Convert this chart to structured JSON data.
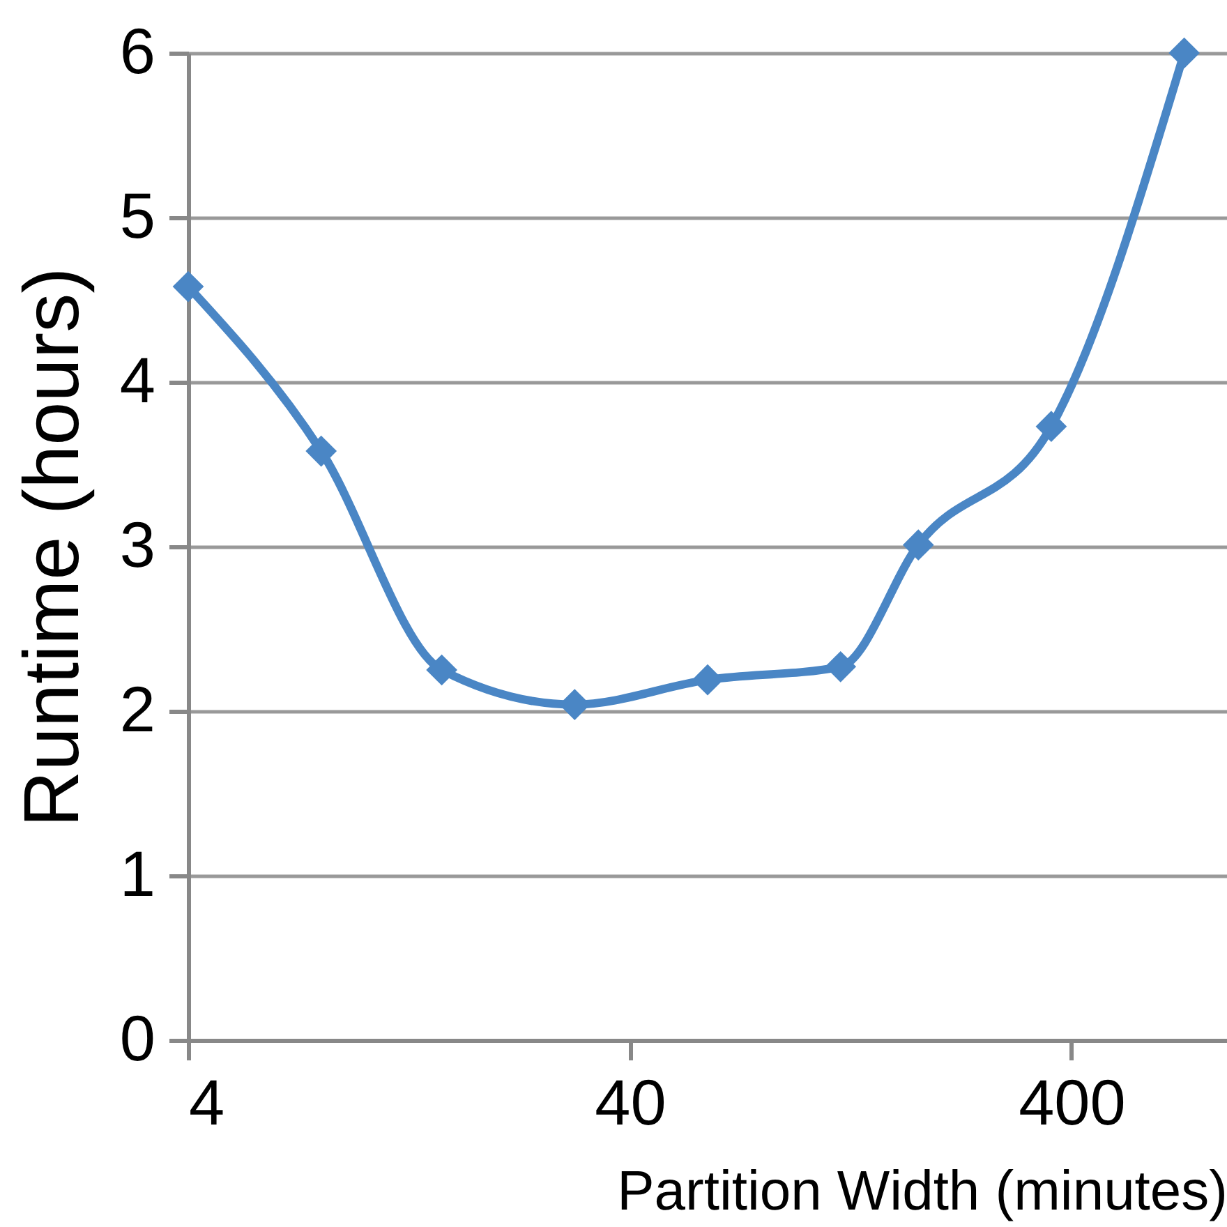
{
  "chart_data": {
    "type": "line",
    "xlabel": "Partition Width (minutes)",
    "ylabel": "Runtime (hours)",
    "x": [
      4,
      8,
      15,
      30,
      60,
      120,
      180,
      360,
      720
    ],
    "series": [
      {
        "color": "#4a86c5",
        "values": [
          4.58,
          3.58,
          2.25,
          2.04,
          2.19,
          2.27,
          3.01,
          3.73,
          6.0
        ]
      }
    ],
    "log": "x",
    "xlim": [
      4,
      900
    ],
    "xticks": [
      4,
      40,
      400
    ],
    "ylim": [
      0,
      6
    ],
    "yticks": [
      0,
      1,
      2,
      3,
      4,
      5,
      6
    ],
    "grid": "y",
    "marker": "diamond",
    "line_style": "solid",
    "legend": false
  }
}
